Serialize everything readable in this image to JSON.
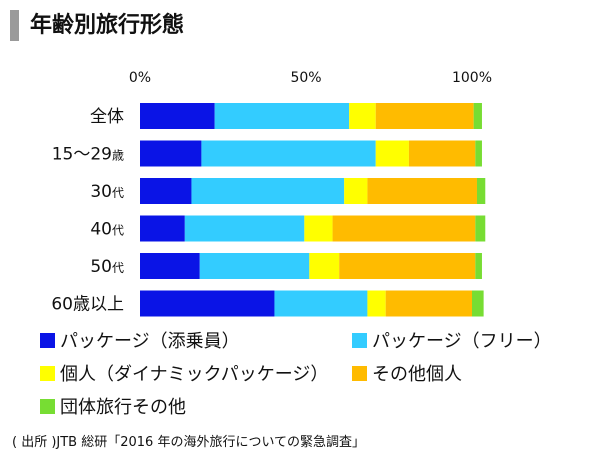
{
  "title": "年齢別旅行形態",
  "source": "( 出所 )JTB 総研「2016 年の海外旅行についての緊急調査」",
  "colors": {
    "package_escorted": "#0a14e6",
    "package_free": "#33ccff",
    "individual_package": "#ffff00",
    "other_individual": "#ffbb00",
    "group": "#77dd33"
  },
  "chart_data": {
    "type": "bar",
    "orientation": "horizontal",
    "stacked": true,
    "categories": [
      "全体",
      "15～29歳",
      "30代",
      "40代",
      "50代",
      "60歳以上"
    ],
    "category_parts": [
      {
        "main": "全体",
        "suffix": ""
      },
      {
        "main": "15～29",
        "suffix": "歳"
      },
      {
        "main": "30",
        "suffix": "代"
      },
      {
        "main": "40",
        "suffix": "代"
      },
      {
        "main": "50",
        "suffix": "代"
      },
      {
        "main": "60歳以上",
        "suffix": ""
      }
    ],
    "x_ticks": [
      {
        "value": 0,
        "label": "0%"
      },
      {
        "value": 50,
        "label": "50%"
      },
      {
        "value": 100,
        "label": "100%"
      }
    ],
    "xlim": [
      0,
      100
    ],
    "grid": false,
    "legend_position": "bottom",
    "series": [
      {
        "name": "パッケージ（添乗員）",
        "color_key": "package_escorted",
        "values": [
          22.5,
          18.5,
          15.5,
          13.5,
          18,
          40.5
        ]
      },
      {
        "name": "パッケージ（フリー）",
        "color_key": "package_free",
        "values": [
          40.5,
          52.5,
          46,
          36,
          33,
          28
        ]
      },
      {
        "name": "個人（ダイナミックパッケージ）",
        "color_key": "individual_package",
        "values": [
          8,
          10,
          7,
          8.5,
          9,
          5.5
        ]
      },
      {
        "name": "その他個人",
        "color_key": "other_individual",
        "values": [
          29.5,
          20,
          33,
          43,
          41,
          26
        ]
      },
      {
        "name": "団体旅行その他",
        "color_key": "group",
        "values": [
          2.5,
          2,
          2.5,
          3,
          2,
          3.5
        ]
      }
    ]
  }
}
